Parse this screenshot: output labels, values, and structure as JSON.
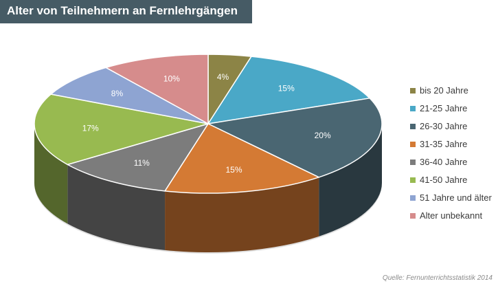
{
  "title": "Alter von Teilnehmern an Fernlehrgängen",
  "source": "Quelle: Fernunterrichtsstatistik 2014",
  "chart_data": {
    "type": "pie",
    "style": "3d",
    "categories": [
      "bis 20 Jahre",
      "21-25 Jahre",
      "26-30 Jahre",
      "31-35 Jahre",
      "36-40 Jahre",
      "41-50 Jahre",
      "51 Jahre und älter",
      "Alter unbekannt"
    ],
    "values": [
      4,
      15,
      20,
      15,
      11,
      17,
      8,
      10
    ],
    "labels": [
      "4%",
      "15%",
      "20%",
      "15%",
      "11%",
      "17%",
      "8%",
      "10%"
    ],
    "colors": [
      "#8c8446",
      "#4aa8c7",
      "#4a6672",
      "#d47a34",
      "#7c7c7c",
      "#98ba50",
      "#8ea4d2",
      "#d68c8c"
    ],
    "legend": "right"
  }
}
